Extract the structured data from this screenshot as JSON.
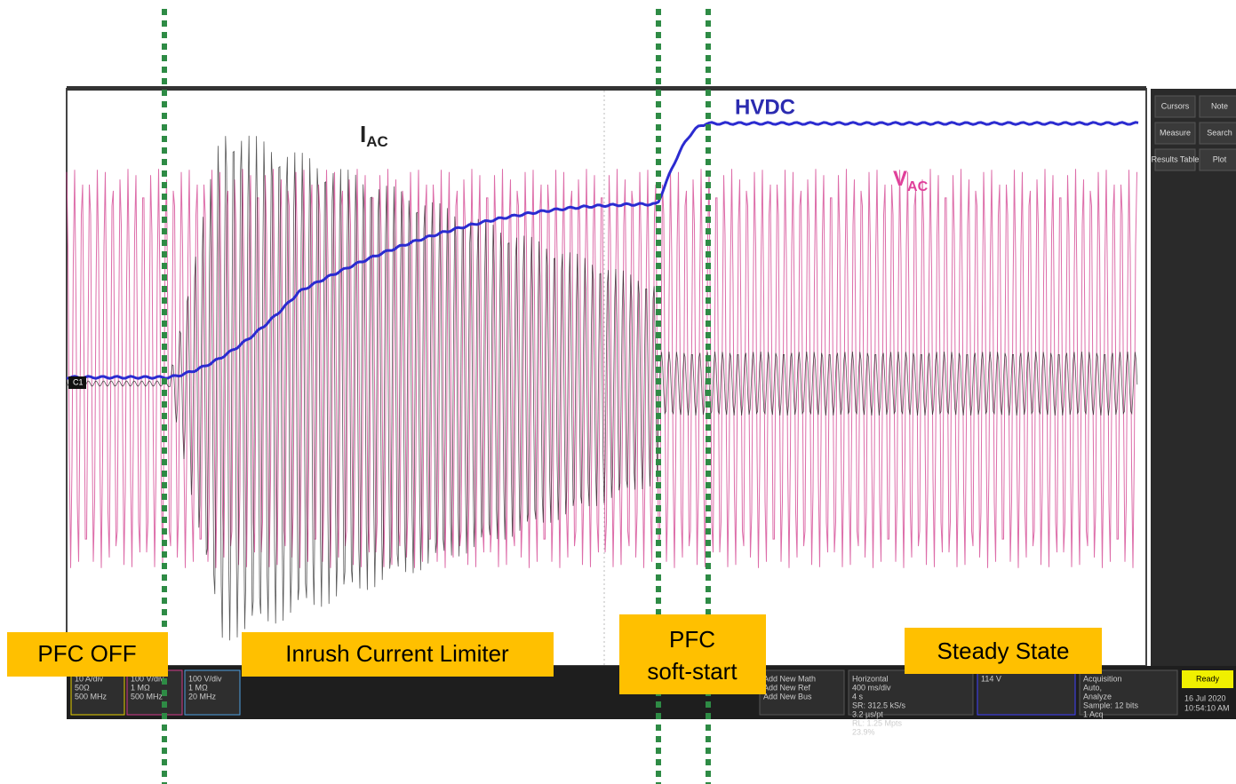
{
  "annotations": {
    "pfc_off": "PFC OFF",
    "inrush": "Inrush Current Limiter",
    "soft_start": [
      "PFC",
      "soft-start"
    ],
    "steady_state": "Steady State"
  },
  "traces": {
    "hvdc": "HVDC",
    "iac": {
      "main": "I",
      "sub": "AC"
    },
    "vac": {
      "main": "V",
      "sub": "AC"
    },
    "ch1_marker": "C1"
  },
  "side_menu": [
    "Cursors",
    "Note",
    "Measure",
    "Search",
    "Results Table",
    "Plot"
  ],
  "bottom_bar": {
    "ch1": [
      "10 A/div",
      "50Ω",
      "500 MHz"
    ],
    "ch2": [
      "100 V/div",
      "1 MΩ",
      "500 MHz"
    ],
    "ch3": [
      "100 V/div",
      "1 MΩ",
      "20 MHz"
    ],
    "add": [
      "Add New Math",
      "Add New Ref",
      "Add New Bus"
    ],
    "horizontal": [
      "Horizontal",
      "400 ms/div",
      "4 s",
      "SR: 312.5 kS/s",
      "3.2 µs/pt",
      "RL: 1.25 Mpts",
      "23.9%"
    ],
    "trigger": [
      "114 V"
    ],
    "acquisition": [
      "Acquisition",
      "Auto,",
      "Analyze",
      "Sample: 12 bits",
      "1 Acq"
    ],
    "status": "Ready",
    "date": "16 Jul 2020",
    "time": "10:54:10 AM"
  }
}
